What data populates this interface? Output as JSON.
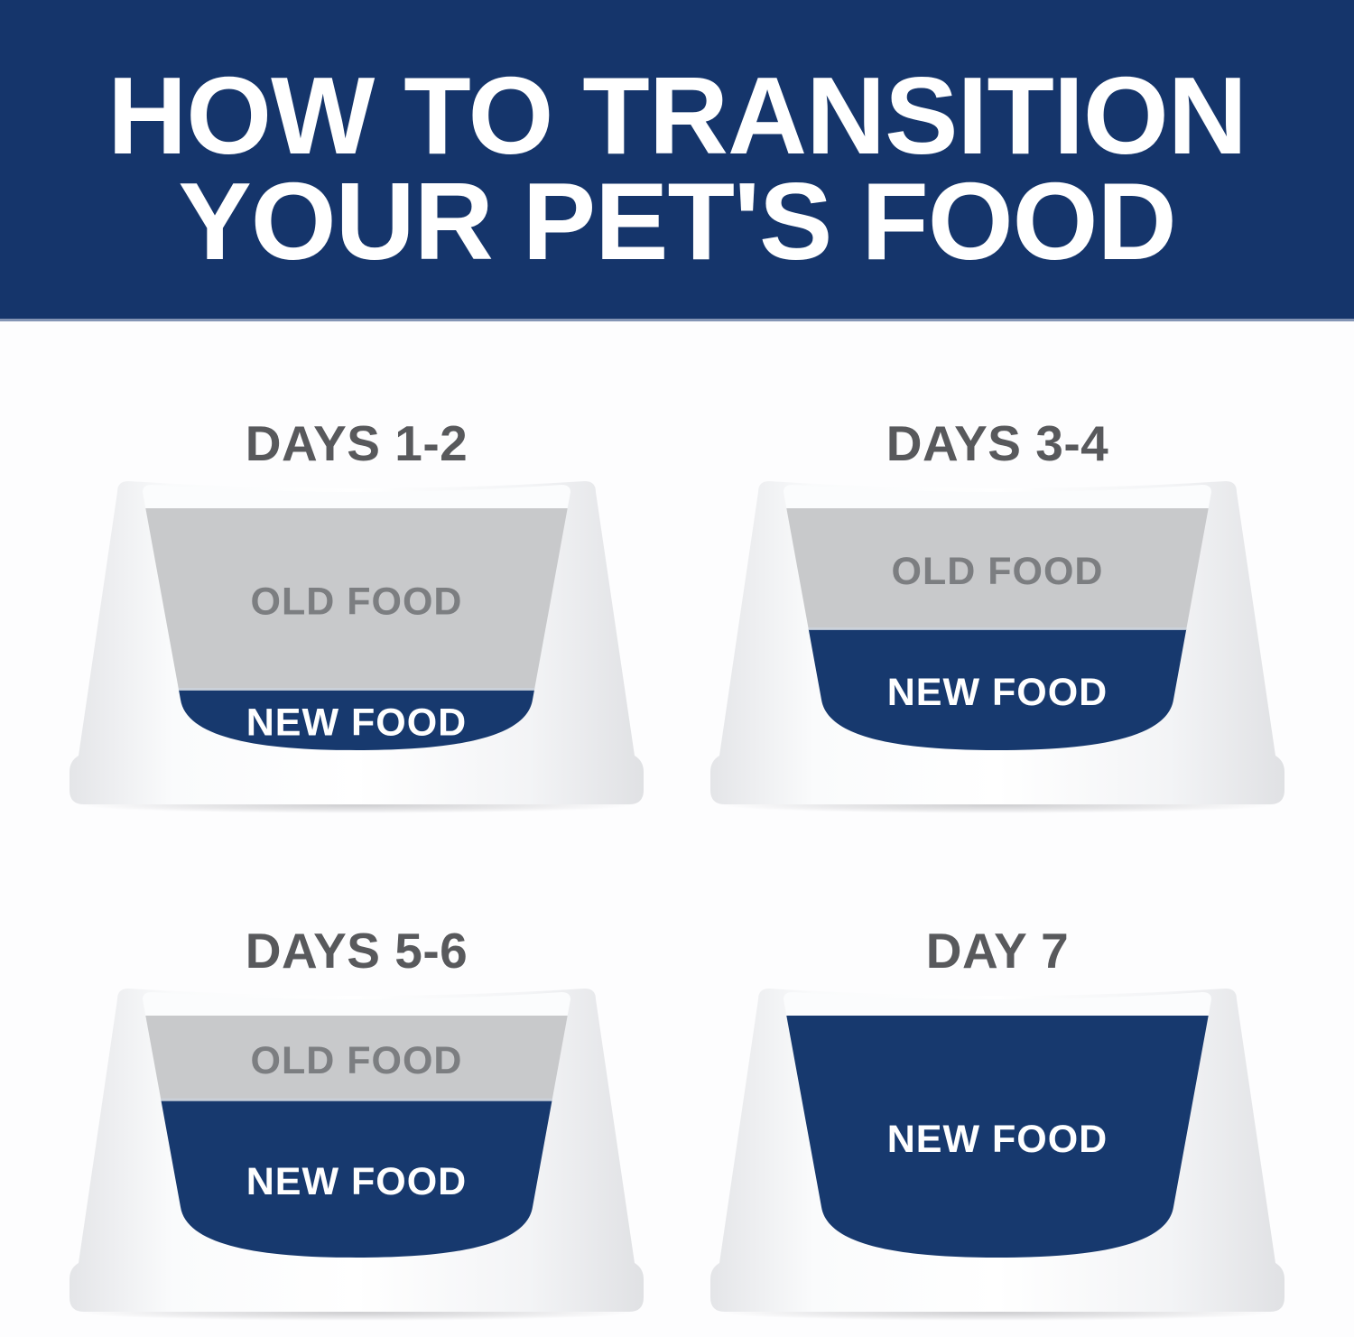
{
  "header": {
    "title_line1": "HOW TO TRANSITION",
    "title_line2": "YOUR PET'S FOOD"
  },
  "bowls": [
    {
      "title": "DAYS 1-2",
      "old_label": "OLD FOOD",
      "new_label": "NEW FOOD",
      "old_food_percent": 75,
      "new_food_percent": 25
    },
    {
      "title": "DAYS 3-4",
      "old_label": "OLD FOOD",
      "new_label": "NEW FOOD",
      "old_food_percent": 50,
      "new_food_percent": 50
    },
    {
      "title": "DAYS 5-6",
      "old_label": "OLD FOOD",
      "new_label": "NEW FOOD",
      "old_food_percent": 35,
      "new_food_percent": 65
    },
    {
      "title": "DAY 7",
      "old_label": "",
      "new_label": "NEW FOOD",
      "old_food_percent": 0,
      "new_food_percent": 100
    }
  ],
  "colors": {
    "header_bg": "#15356b",
    "header_rule": "#8495b5",
    "new_food": "#17396e",
    "old_food_bg": "#c8c9cb",
    "old_food_text": "#7c7e81",
    "new_food_text": "#ffffff",
    "day_title": "#58595c",
    "page_bg": "#fdfdfe"
  }
}
